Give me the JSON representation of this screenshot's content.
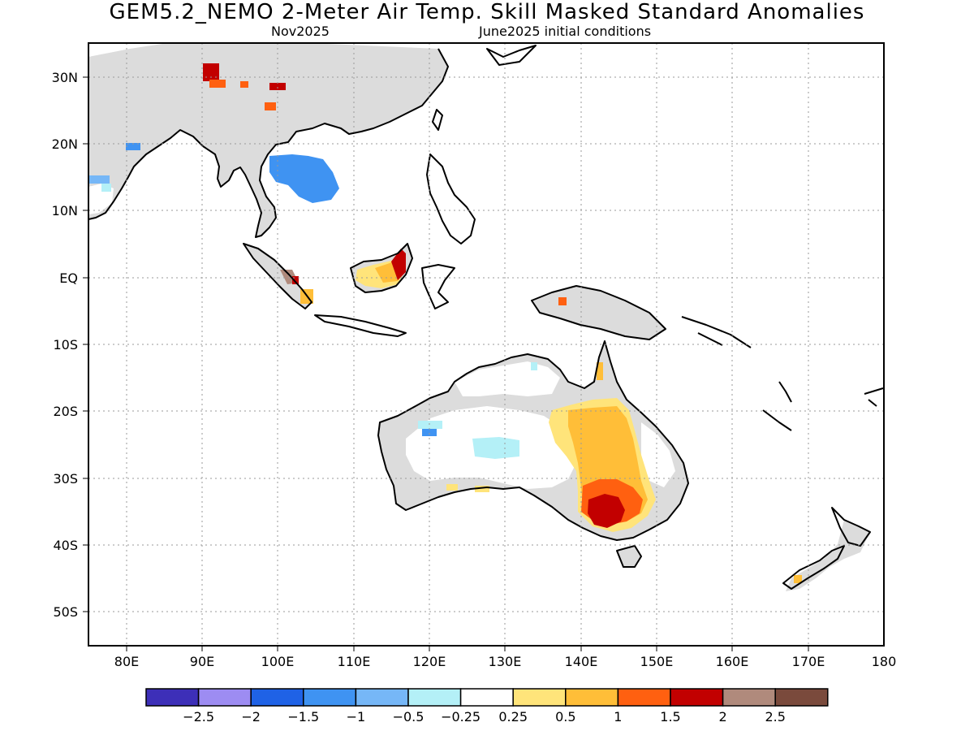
{
  "title": "GEM5.2_NEMO 2-Meter Air Temp. Skill Masked Standard Anomalies",
  "subtitle_left": "Nov2025",
  "subtitle_right": "June2025 initial conditions",
  "map": {
    "lon_range": [
      75,
      180
    ],
    "lat_range": [
      -55,
      35
    ],
    "lon_ticks": [
      {
        "value": 80,
        "label": "80E"
      },
      {
        "value": 90,
        "label": "90E"
      },
      {
        "value": 100,
        "label": "100E"
      },
      {
        "value": 110,
        "label": "110E"
      },
      {
        "value": 120,
        "label": "120E"
      },
      {
        "value": 130,
        "label": "130E"
      },
      {
        "value": 140,
        "label": "140E"
      },
      {
        "value": 150,
        "label": "150E"
      },
      {
        "value": 160,
        "label": "160E"
      },
      {
        "value": 170,
        "label": "170E"
      },
      {
        "value": 180,
        "label": "180"
      }
    ],
    "lat_ticks": [
      {
        "value": 30,
        "label": "30N"
      },
      {
        "value": 20,
        "label": "20N"
      },
      {
        "value": 10,
        "label": "10N"
      },
      {
        "value": 0,
        "label": "EQ"
      },
      {
        "value": -10,
        "label": "10S"
      },
      {
        "value": -20,
        "label": "20S"
      },
      {
        "value": -30,
        "label": "30S"
      },
      {
        "value": -40,
        "label": "40S"
      },
      {
        "value": -50,
        "label": "50S"
      }
    ],
    "grid": "dotted",
    "masked_color": "#dcdcdc",
    "coastline_color": "#000000"
  },
  "colorbar": {
    "colors": [
      "#3d2fb8",
      "#9d8cf2",
      "#1f62e6",
      "#3f93f2",
      "#76b7f7",
      "#b4f0f7",
      "#ffffff",
      "#ffe47a",
      "#ffbe38",
      "#ff6010",
      "#c20000",
      "#b08a7c",
      "#7a4a3c"
    ],
    "labels": [
      "-2.5",
      "-2",
      "-1.5",
      "-1",
      "-0.5",
      "-0.25",
      "0.25",
      "0.5",
      "1",
      "1.5",
      "2",
      "2.5"
    ]
  }
}
